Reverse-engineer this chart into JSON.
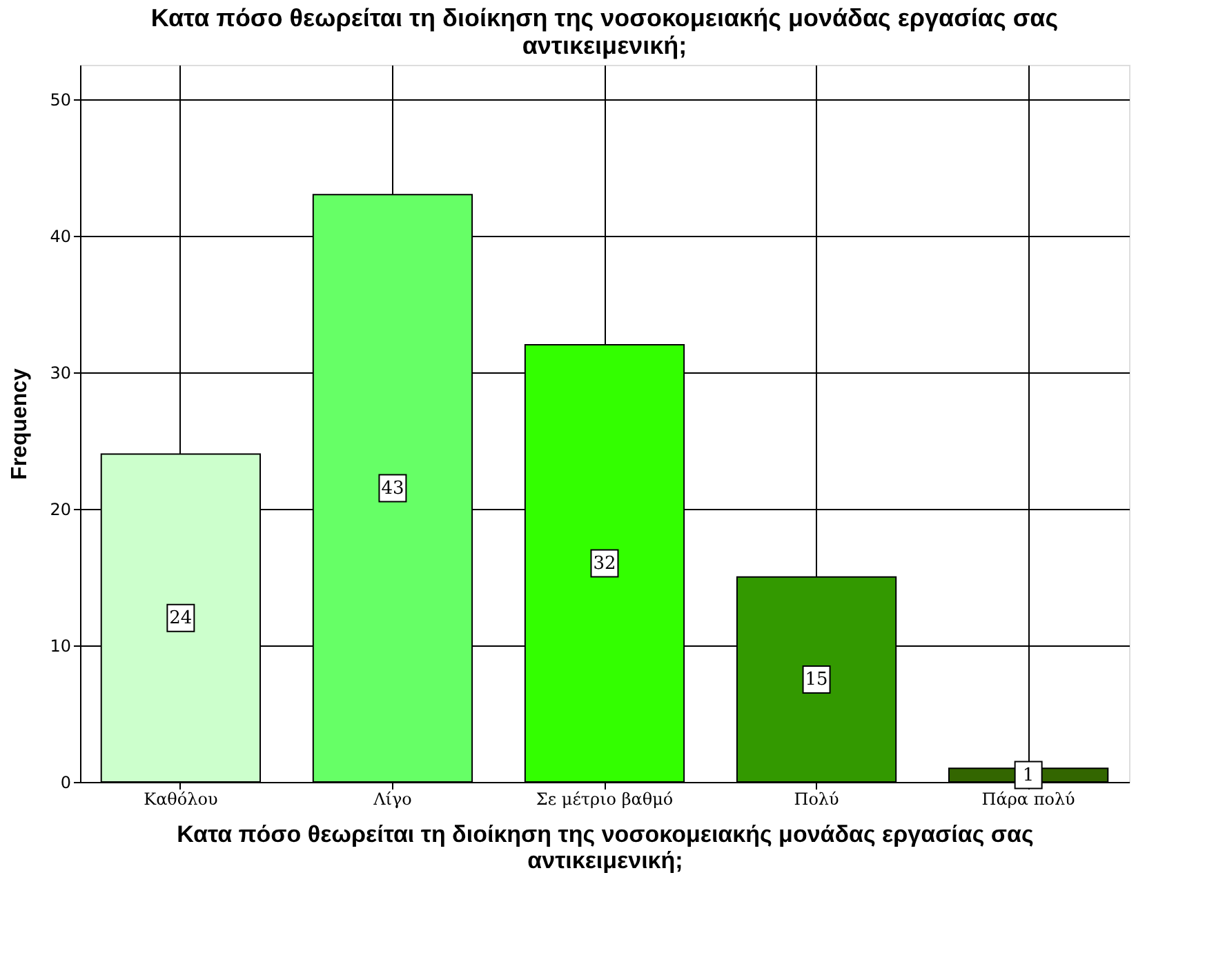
{
  "chart_data": {
    "type": "bar",
    "title": "Κατα πόσο θεωρείται τη διοίκηση της νοσοκομειακής μονάδας εργασίας σας αντικειμενική;",
    "xlabel": "Κατα πόσο θεωρείται τη διοίκηση της νοσοκομειακής μονάδας εργασίας σας αντικειμενική;",
    "ylabel": "Frequency",
    "categories": [
      "Καθόλου",
      "Λίγο",
      "Σε μέτριο βαθμό",
      "Πολύ",
      "Πάρα πολύ"
    ],
    "values": [
      24,
      43,
      32,
      15,
      1
    ],
    "colors": [
      "#ccffcc",
      "#66ff66",
      "#33ff00",
      "#339900",
      "#336600"
    ],
    "ylim": [
      0,
      52.5
    ],
    "yticks": [
      0,
      10,
      20,
      30,
      40,
      50
    ],
    "grid": true,
    "data_labels": true
  }
}
